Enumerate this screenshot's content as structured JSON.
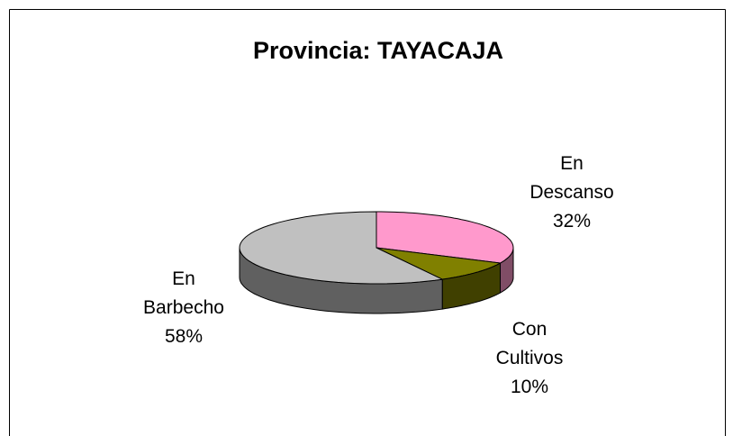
{
  "chart_data": {
    "type": "pie3d",
    "title": "Provincia: TAYACAJA",
    "categories": [
      "En Descanso",
      "Con Cultivos",
      "En Barbecho"
    ],
    "values": [
      32,
      10,
      58
    ],
    "value_labels": [
      "32%",
      "10%",
      "58%"
    ],
    "colors": [
      "#ff99cc",
      "#808000",
      "#c0c0c0"
    ]
  }
}
